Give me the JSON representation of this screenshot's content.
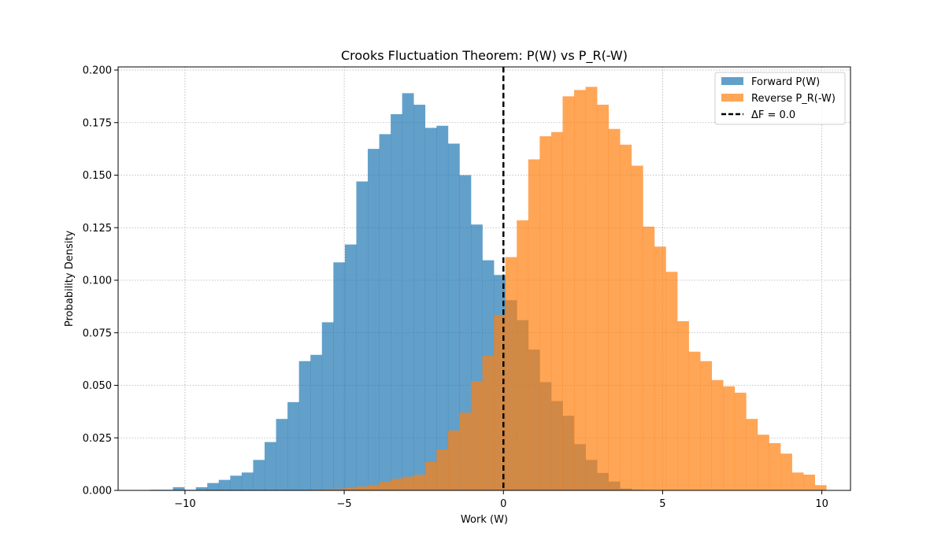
{
  "chart_data": {
    "type": "bar",
    "title": "Crooks Fluctuation Theorem: P(W) vs P_R(-W)",
    "xlabel": "Work (W)",
    "ylabel": "Probability Density",
    "xlim": [
      -12.1,
      10.9
    ],
    "ylim": [
      0,
      0.2015
    ],
    "xticks": [
      -10,
      -5,
      0,
      5,
      10
    ],
    "xtick_labels": [
      "−10",
      "−5",
      "0",
      "5",
      "10"
    ],
    "yticks": [
      0,
      0.025,
      0.05,
      0.075,
      0.1,
      0.125,
      0.15,
      0.175,
      0.2
    ],
    "ytick_labels": [
      "0.000",
      "0.025",
      "0.050",
      "0.075",
      "0.100",
      "0.125",
      "0.150",
      "0.175",
      "0.200"
    ],
    "grid": true,
    "legend_position": "top-right",
    "series": [
      {
        "name": "Forward P(W)",
        "color": "#1f77b4",
        "opacity": 0.7,
        "bin_edges": [
          -11.1,
          -10.74,
          -10.38,
          -10.02,
          -9.66,
          -9.3,
          -8.94,
          -8.58,
          -8.22,
          -7.86,
          -7.5,
          -7.14,
          -6.78,
          -6.42,
          -6.06,
          -5.7,
          -5.34,
          -4.98,
          -4.62,
          -4.26,
          -3.9,
          -3.54,
          -3.18,
          -2.82,
          -2.46,
          -2.1,
          -1.74,
          -1.38,
          -1.02,
          -0.66,
          -0.3,
          0.06,
          0.42,
          0.78,
          1.14,
          1.5,
          1.86,
          2.22,
          2.58,
          2.94,
          3.3,
          3.66,
          4.02,
          4.38
        ],
        "values": [
          0.0003,
          0.0003,
          0.0015,
          0.0003,
          0.0015,
          0.0035,
          0.005,
          0.007,
          0.0085,
          0.0145,
          0.023,
          0.034,
          0.042,
          0.0615,
          0.0645,
          0.08,
          0.1085,
          0.117,
          0.147,
          0.1625,
          0.1695,
          0.179,
          0.189,
          0.1835,
          0.1725,
          0.1735,
          0.165,
          0.15,
          0.1265,
          0.1095,
          0.1025,
          0.0905,
          0.081,
          0.067,
          0.0515,
          0.0425,
          0.0355,
          0.022,
          0.0145,
          0.0083,
          0.0042,
          0.0009,
          0.0003
        ]
      },
      {
        "name": "Reverse P_R(-W)",
        "color": "#ff7f0e",
        "opacity": 0.7,
        "bin_edges": [
          -6.06,
          -5.7,
          -5.34,
          -4.98,
          -4.62,
          -4.26,
          -3.9,
          -3.54,
          -3.18,
          -2.82,
          -2.46,
          -2.1,
          -1.74,
          -1.38,
          -1.02,
          -0.66,
          -0.3,
          0.06,
          0.42,
          0.78,
          1.14,
          1.5,
          1.86,
          2.22,
          2.58,
          2.94,
          3.3,
          3.66,
          4.02,
          4.38,
          4.74,
          5.1,
          5.46,
          5.82,
          6.18,
          6.54,
          6.9,
          7.26,
          7.62,
          7.98,
          8.34,
          8.7,
          9.06,
          9.42,
          9.78,
          10.14
        ],
        "values": [
          0.0003,
          0.0005,
          0.0008,
          0.0012,
          0.0018,
          0.0025,
          0.004,
          0.0055,
          0.0065,
          0.0075,
          0.0135,
          0.0195,
          0.0285,
          0.037,
          0.052,
          0.064,
          0.0835,
          0.111,
          0.1285,
          0.1575,
          0.1685,
          0.1705,
          0.1875,
          0.1905,
          0.192,
          0.1835,
          0.172,
          0.1645,
          0.1545,
          0.1255,
          0.116,
          0.104,
          0.0805,
          0.066,
          0.0615,
          0.0525,
          0.0495,
          0.0465,
          0.034,
          0.0265,
          0.0225,
          0.0175,
          0.0085,
          0.0075,
          0.0025
        ]
      }
    ],
    "reference_line": {
      "label": "ΔF = 0.0",
      "x": 0.0,
      "color": "#000000",
      "style": "dashed"
    }
  }
}
